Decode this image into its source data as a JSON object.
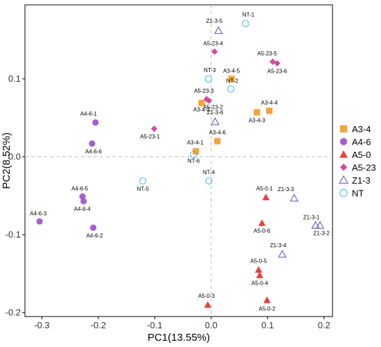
{
  "chart_data": {
    "type": "scatter",
    "xlabel": "PC1(13.55%)",
    "ylabel": "PC2(8.52%)",
    "xlim": [
      -0.33,
      0.215
    ],
    "ylim": [
      -0.205,
      0.195
    ],
    "xticks": [
      -0.3,
      -0.2,
      -0.1,
      0.0,
      0.1,
      0.2
    ],
    "xtick_labels": [
      "-0.3",
      "-0.2",
      "-0.1",
      "0.0",
      "0.1",
      "0.2"
    ],
    "yticks": [
      -0.2,
      -0.1,
      0.0,
      0.1
    ],
    "ytick_labels": [
      "-0.2",
      "-0.1",
      "0.0",
      "0.1"
    ],
    "reference_lines": {
      "x": 0,
      "y": 0,
      "style": "dashed"
    },
    "grid": false,
    "legend_position": "right",
    "series": [
      {
        "name": "A3-4",
        "marker": "square",
        "color": "#F5A33B",
        "points": [
          {
            "label": "A3-4-1",
            "x": -0.027,
            "y": 0.007
          },
          {
            "label": "A3-4-2",
            "x": -0.017,
            "y": 0.069
          },
          {
            "label": "A3-4-3",
            "x": 0.081,
            "y": 0.057
          },
          {
            "label": "A3-4-4",
            "x": 0.103,
            "y": 0.059
          },
          {
            "label": "A3-4-5",
            "x": 0.036,
            "y": 0.1
          },
          {
            "label": "A3-4-6",
            "x": 0.011,
            "y": 0.02
          }
        ]
      },
      {
        "name": "A4-6",
        "marker": "circle",
        "color": "#A45FD0",
        "points": [
          {
            "label": "A4-6-1",
            "x": -0.205,
            "y": 0.044
          },
          {
            "label": "A4-6-2",
            "x": -0.209,
            "y": -0.091
          },
          {
            "label": "A4-6-3",
            "x": -0.304,
            "y": -0.083
          },
          {
            "label": "A4-6-4",
            "x": -0.226,
            "y": -0.057
          },
          {
            "label": "A4-6-5",
            "x": -0.228,
            "y": -0.051
          },
          {
            "label": "A4-6-6",
            "x": -0.211,
            "y": 0.017
          }
        ]
      },
      {
        "name": "A5-0",
        "marker": "triangle",
        "color": "#E8413E",
        "points": [
          {
            "label": "A5-0-1",
            "x": 0.097,
            "y": -0.052
          },
          {
            "label": "A5-0-2",
            "x": 0.099,
            "y": -0.184
          },
          {
            "label": "A5-0-3",
            "x": -0.006,
            "y": -0.19
          },
          {
            "label": "A5-0-4",
            "x": 0.086,
            "y": -0.152
          },
          {
            "label": "A5-0-5",
            "x": 0.084,
            "y": -0.145
          },
          {
            "label": "A5-0-6",
            "x": 0.09,
            "y": -0.085
          }
        ]
      },
      {
        "name": "A5-23",
        "marker": "diamond",
        "color": "#D54A9E",
        "points": [
          {
            "label": "A5-23-1",
            "x": -0.101,
            "y": 0.036
          },
          {
            "label": "A5-23-2",
            "x": -0.004,
            "y": 0.072
          },
          {
            "label": "A5-23-3",
            "x": -0.008,
            "y": 0.074
          },
          {
            "label": "A5-23-4",
            "x": 0.006,
            "y": 0.135
          },
          {
            "label": "A5-23-5",
            "x": 0.109,
            "y": 0.122
          },
          {
            "label": "A5-23-6",
            "x": 0.117,
            "y": 0.12
          }
        ]
      },
      {
        "name": "Z1-3",
        "marker": "triangle-open",
        "color": "#5A4FB0",
        "points": [
          {
            "label": "Z1-3-1",
            "x": 0.185,
            "y": -0.088
          },
          {
            "label": "Z1-3-2",
            "x": 0.193,
            "y": -0.088
          },
          {
            "label": "Z1-3-3",
            "x": 0.147,
            "y": -0.053
          },
          {
            "label": "Z1-3-4",
            "x": 0.126,
            "y": -0.125
          },
          {
            "label": "Z1-3-5",
            "x": 0.013,
            "y": 0.162
          },
          {
            "label": "Z1-3-6",
            "x": 0.007,
            "y": 0.045
          }
        ]
      },
      {
        "name": "NT",
        "marker": "circle-open",
        "color": "#3FB8E0",
        "points": [
          {
            "label": "NT-1",
            "x": 0.061,
            "y": 0.171
          },
          {
            "label": "NT-2",
            "x": 0.035,
            "y": 0.087
          },
          {
            "label": "NT-3",
            "x": -0.005,
            "y": 0.1
          },
          {
            "label": "NT-4",
            "x": -0.004,
            "y": -0.031
          },
          {
            "label": "NT-5",
            "x": -0.121,
            "y": -0.031
          },
          {
            "label": "NT-6",
            "x": -0.031,
            "y": 0.003
          }
        ]
      }
    ]
  }
}
